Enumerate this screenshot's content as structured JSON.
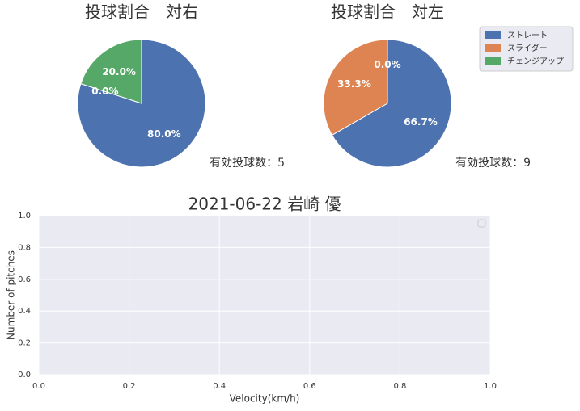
{
  "chart_data": [
    {
      "type": "pie",
      "title": "投球割合　対右",
      "categories": [
        "ストレート",
        "スライダー",
        "チェンジアップ"
      ],
      "values": [
        80.0,
        0.0,
        20.0
      ],
      "value_labels": [
        "80.0%",
        "0.0%",
        "20.0%"
      ],
      "colors": [
        "#4c72b0",
        "#dd8452",
        "#55a868"
      ],
      "annotation": "有効投球数：5"
    },
    {
      "type": "pie",
      "title": "投球割合　対左",
      "categories": [
        "ストレート",
        "スライダー",
        "チェンジアップ"
      ],
      "values": [
        66.7,
        33.3,
        0.0
      ],
      "value_labels": [
        "66.7%",
        "33.3%",
        "0.0%"
      ],
      "colors": [
        "#4c72b0",
        "#dd8452",
        "#55a868"
      ],
      "annotation": "有効投球数：9",
      "legend": "upper right"
    },
    {
      "type": "histogram",
      "title": "2021-06-22 岩崎 優",
      "xlabel": "Velocity(km/h)",
      "ylabel": "Number of pitches",
      "xlim": [
        0,
        1
      ],
      "ylim": [
        0,
        1
      ],
      "xticks": [
        {
          "value": 0,
          "label": "0.0"
        },
        {
          "value": 0.2,
          "label": "0.2"
        },
        {
          "value": 0.4,
          "label": "0.4"
        },
        {
          "value": 0.6,
          "label": "0.6"
        },
        {
          "value": 0.8,
          "label": "0.8"
        },
        {
          "value": 1,
          "label": "1.0"
        }
      ],
      "yticks": [
        {
          "value": 0,
          "label": "0.0"
        },
        {
          "value": 0.2,
          "label": "0.2"
        },
        {
          "value": 0.4,
          "label": "0.4"
        },
        {
          "value": 0.6,
          "label": "0.6"
        },
        {
          "value": 0.8,
          "label": "0.8"
        },
        {
          "value": 1,
          "label": "1.0"
        }
      ],
      "grid": true,
      "legend": "upper right"
    }
  ]
}
